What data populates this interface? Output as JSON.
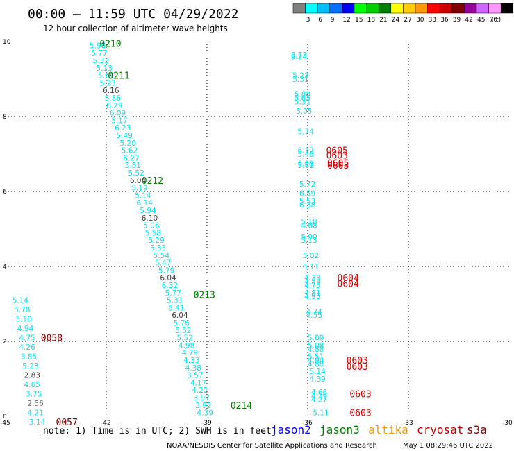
{
  "header": {
    "title": "00:00 — 11:59 UTC 04/29/2022",
    "subtitle": "12 hour collection of altimeter wave heights"
  },
  "legend": {
    "unit": "(ft)",
    "bins": [
      {
        "label": "",
        "color": "#808080"
      },
      {
        "label": "3",
        "color": "#00ffff"
      },
      {
        "label": "6",
        "color": "#00bfff"
      },
      {
        "label": "9",
        "color": "#0070ff"
      },
      {
        "label": "12",
        "color": "#0000ff"
      },
      {
        "label": "15",
        "color": "#00ff00"
      },
      {
        "label": "18",
        "color": "#00d000"
      },
      {
        "label": "21",
        "color": "#008000"
      },
      {
        "label": "24",
        "color": "#ffff00"
      },
      {
        "label": "27",
        "color": "#ffcc00"
      },
      {
        "label": "30",
        "color": "#ff9900"
      },
      {
        "label": "33",
        "color": "#ff0000"
      },
      {
        "label": "36",
        "color": "#cc0000"
      },
      {
        "label": "39",
        "color": "#800000"
      },
      {
        "label": "42",
        "color": "#990099"
      },
      {
        "label": "45",
        "color": "#cc66ff"
      },
      {
        "label": "70",
        "color": "#ff99ff"
      },
      {
        "label": "",
        "color": "#000000"
      }
    ]
  },
  "footer": {
    "note": "note: 1) Time is in UTC; 2) SWH is in feet",
    "satellites": [
      {
        "name": "jason2",
        "color": "#0000ff"
      },
      {
        "name": "jason3",
        "color": "#008000"
      },
      {
        "name": "altika",
        "color": "#ff9900"
      },
      {
        "name": "cryosat",
        "color": "#cc0000"
      },
      {
        "name": "s3a",
        "color": "#800000"
      }
    ],
    "credit": "NOAA/NESDIS Center for Satellite Applications and Research",
    "timestamp": "May  1 08:29:46 UTC 2022"
  },
  "chart_data": {
    "type": "scatter",
    "xlim": [
      -45,
      -30
    ],
    "ylim": [
      0,
      10
    ],
    "x_ticks": [
      "-45",
      "-42",
      "-39",
      "-36",
      "-33",
      "-30"
    ],
    "y_ticks": [
      "0",
      "2",
      "4",
      "6",
      "8",
      "10"
    ],
    "grid": "dotted",
    "colors": {
      "cyan": "#00e8f0",
      "grey": "#404040",
      "lgrey": "#707070",
      "green": "#008000",
      "red": "#e00000",
      "maroon": "#800000"
    },
    "values": [
      {
        "x": -42.5,
        "y": 9.9,
        "text": "5.96",
        "c": "cyan"
      },
      {
        "x": -42.45,
        "y": 9.7,
        "text": "5.77",
        "c": "cyan"
      },
      {
        "x": -42.4,
        "y": 9.5,
        "text": "5.33",
        "c": "cyan"
      },
      {
        "x": -42.3,
        "y": 9.3,
        "text": "5.13",
        "c": "cyan"
      },
      {
        "x": -42.25,
        "y": 9.1,
        "text": "5.61",
        "c": "cyan"
      },
      {
        "x": -42.2,
        "y": 8.9,
        "text": "5.23",
        "c": "cyan"
      },
      {
        "x": -42.1,
        "y": 8.7,
        "text": "6.16",
        "c": "grey"
      },
      {
        "x": -42.05,
        "y": 8.5,
        "text": "5.86",
        "c": "cyan"
      },
      {
        "x": -42.0,
        "y": 8.3,
        "text": "6.29",
        "c": "cyan"
      },
      {
        "x": -41.9,
        "y": 8.1,
        "text": "6.09",
        "c": "cyan"
      },
      {
        "x": -41.85,
        "y": 7.9,
        "text": "5.17",
        "c": "cyan"
      },
      {
        "x": -41.75,
        "y": 7.7,
        "text": "6.23",
        "c": "cyan"
      },
      {
        "x": -41.7,
        "y": 7.5,
        "text": "5.49",
        "c": "cyan"
      },
      {
        "x": -41.6,
        "y": 7.3,
        "text": "5.20",
        "c": "cyan"
      },
      {
        "x": -41.55,
        "y": 7.1,
        "text": "5.62",
        "c": "cyan"
      },
      {
        "x": -41.5,
        "y": 6.9,
        "text": "6.27",
        "c": "cyan"
      },
      {
        "x": -41.45,
        "y": 6.7,
        "text": "5.81",
        "c": "cyan"
      },
      {
        "x": -41.35,
        "y": 6.5,
        "text": "5.52",
        "c": "cyan"
      },
      {
        "x": -41.3,
        "y": 6.3,
        "text": "6.04",
        "c": "grey"
      },
      {
        "x": -41.25,
        "y": 6.1,
        "text": "5.19",
        "c": "cyan"
      },
      {
        "x": -41.15,
        "y": 5.9,
        "text": "5.14",
        "c": "cyan"
      },
      {
        "x": -41.1,
        "y": 5.7,
        "text": "6.14",
        "c": "cyan"
      },
      {
        "x": -41.0,
        "y": 5.5,
        "text": "5.94",
        "c": "cyan"
      },
      {
        "x": -40.95,
        "y": 5.3,
        "text": "6.10",
        "c": "grey"
      },
      {
        "x": -40.9,
        "y": 5.1,
        "text": "5.06",
        "c": "cyan"
      },
      {
        "x": -40.85,
        "y": 4.9,
        "text": "5.58",
        "c": "cyan"
      },
      {
        "x": -40.75,
        "y": 4.7,
        "text": "5.29",
        "c": "cyan"
      },
      {
        "x": -40.7,
        "y": 4.5,
        "text": "5.35",
        "c": "cyan"
      },
      {
        "x": -40.6,
        "y": 4.3,
        "text": "5.54",
        "c": "cyan"
      },
      {
        "x": -40.55,
        "y": 4.1,
        "text": "5.47",
        "c": "cyan"
      },
      {
        "x": -40.45,
        "y": 3.9,
        "text": "5.79",
        "c": "cyan"
      },
      {
        "x": -40.4,
        "y": 3.7,
        "text": "6.04",
        "c": "grey"
      },
      {
        "x": -40.35,
        "y": 3.5,
        "text": "6.32",
        "c": "cyan"
      },
      {
        "x": -40.25,
        "y": 3.3,
        "text": "5.77",
        "c": "cyan"
      },
      {
        "x": -40.2,
        "y": 3.1,
        "text": "5.31",
        "c": "cyan"
      },
      {
        "x": -40.15,
        "y": 2.9,
        "text": "5.41",
        "c": "cyan"
      },
      {
        "x": -40.05,
        "y": 2.7,
        "text": "6.04",
        "c": "grey"
      },
      {
        "x": -40.0,
        "y": 2.5,
        "text": "5.76",
        "c": "cyan"
      },
      {
        "x": -39.95,
        "y": 2.3,
        "text": "5.52",
        "c": "cyan"
      },
      {
        "x": -39.9,
        "y": 2.1,
        "text": "5.52",
        "c": "cyan"
      },
      {
        "x": -39.85,
        "y": 1.9,
        "text": "4.98",
        "c": "cyan"
      },
      {
        "x": -39.75,
        "y": 1.7,
        "text": "4.79",
        "c": "cyan"
      },
      {
        "x": -39.7,
        "y": 1.5,
        "text": "4.33",
        "c": "cyan"
      },
      {
        "x": -39.65,
        "y": 1.3,
        "text": "4.38",
        "c": "cyan"
      },
      {
        "x": -39.6,
        "y": 1.1,
        "text": "3.57",
        "c": "cyan"
      },
      {
        "x": -39.5,
        "y": 0.9,
        "text": "4.17",
        "c": "cyan"
      },
      {
        "x": -39.45,
        "y": 0.7,
        "text": "4.22",
        "c": "cyan"
      },
      {
        "x": -39.4,
        "y": 0.5,
        "text": "3.97",
        "c": "cyan"
      },
      {
        "x": -39.35,
        "y": 0.3,
        "text": "3.92",
        "c": "cyan"
      },
      {
        "x": -39.3,
        "y": 0.1,
        "text": "4.39",
        "c": "cyan"
      },
      {
        "x": -36.5,
        "y": 9.65,
        "text": "5.73",
        "c": "cyan"
      },
      {
        "x": -36.5,
        "y": 9.6,
        "text": "5.24",
        "c": "cyan"
      },
      {
        "x": -36.45,
        "y": 9.1,
        "text": "5.23",
        "c": "cyan"
      },
      {
        "x": -36.45,
        "y": 9.0,
        "text": "5.31",
        "c": "cyan"
      },
      {
        "x": -36.4,
        "y": 8.6,
        "text": "5.88",
        "c": "cyan"
      },
      {
        "x": -36.4,
        "y": 8.5,
        "text": "5.65",
        "c": "cyan"
      },
      {
        "x": -36.4,
        "y": 8.4,
        "text": "5.31",
        "c": "cyan"
      },
      {
        "x": -36.35,
        "y": 8.15,
        "text": "5.05",
        "c": "cyan"
      },
      {
        "x": -36.3,
        "y": 7.6,
        "text": "5.74",
        "c": "cyan"
      },
      {
        "x": -36.3,
        "y": 7.1,
        "text": "6.12",
        "c": "cyan"
      },
      {
        "x": -36.3,
        "y": 7.0,
        "text": "5.46",
        "c": "cyan"
      },
      {
        "x": -36.3,
        "y": 6.75,
        "text": "6.03",
        "c": "cyan"
      },
      {
        "x": -36.3,
        "y": 6.7,
        "text": "5.81",
        "c": "cyan"
      },
      {
        "x": -36.25,
        "y": 6.2,
        "text": "5.72",
        "c": "cyan"
      },
      {
        "x": -36.25,
        "y": 5.95,
        "text": "6.59",
        "c": "cyan"
      },
      {
        "x": -36.25,
        "y": 5.75,
        "text": "5.53",
        "c": "cyan"
      },
      {
        "x": -36.25,
        "y": 5.65,
        "text": "6.38",
        "c": "cyan"
      },
      {
        "x": -36.2,
        "y": 5.2,
        "text": "5.18",
        "c": "cyan"
      },
      {
        "x": -36.2,
        "y": 5.1,
        "text": "4.68",
        "c": "cyan"
      },
      {
        "x": -36.2,
        "y": 4.8,
        "text": "5.90",
        "c": "cyan"
      },
      {
        "x": -36.2,
        "y": 4.7,
        "text": "5.13",
        "c": "cyan"
      },
      {
        "x": -36.15,
        "y": 4.3,
        "text": "5.02",
        "c": "cyan"
      },
      {
        "x": -36.15,
        "y": 4.0,
        "text": "5.11",
        "c": "cyan"
      },
      {
        "x": -36.1,
        "y": 3.7,
        "text": "4.33",
        "c": "cyan"
      },
      {
        "x": -36.1,
        "y": 3.6,
        "text": "4.53",
        "c": "cyan"
      },
      {
        "x": -36.1,
        "y": 3.5,
        "text": "4.75",
        "c": "cyan"
      },
      {
        "x": -36.1,
        "y": 3.3,
        "text": "4.81",
        "c": "cyan"
      },
      {
        "x": -36.1,
        "y": 3.2,
        "text": "4.93",
        "c": "cyan"
      },
      {
        "x": -36.05,
        "y": 2.8,
        "text": "4.74",
        "c": "cyan"
      },
      {
        "x": -36.05,
        "y": 2.7,
        "text": "4.55",
        "c": "cyan"
      },
      {
        "x": -36.0,
        "y": 2.1,
        "text": "5.09",
        "c": "cyan"
      },
      {
        "x": -36.0,
        "y": 1.9,
        "text": "5.08",
        "c": "cyan"
      },
      {
        "x": -36.0,
        "y": 1.8,
        "text": "4.88",
        "c": "cyan"
      },
      {
        "x": -36.0,
        "y": 1.6,
        "text": "5.51",
        "c": "cyan"
      },
      {
        "x": -36.0,
        "y": 1.5,
        "text": "4.94",
        "c": "cyan"
      },
      {
        "x": -36.0,
        "y": 1.4,
        "text": "4.88",
        "c": "cyan"
      },
      {
        "x": -35.95,
        "y": 1.2,
        "text": "5.14",
        "c": "cyan"
      },
      {
        "x": -35.95,
        "y": 1.0,
        "text": "4.39",
        "c": "cyan"
      },
      {
        "x": -35.9,
        "y": 0.65,
        "text": "4.66",
        "c": "cyan"
      },
      {
        "x": -35.9,
        "y": 0.55,
        "text": "4.39",
        "c": "cyan"
      },
      {
        "x": -35.9,
        "y": 0.45,
        "text": "4.27",
        "c": "cyan"
      },
      {
        "x": -35.85,
        "y": 0.1,
        "text": "5.11",
        "c": "cyan"
      },
      {
        "x": -44.8,
        "y": 3.1,
        "text": "5.14",
        "c": "cyan"
      },
      {
        "x": -44.75,
        "y": 2.85,
        "text": "5.78",
        "c": "cyan"
      },
      {
        "x": -44.7,
        "y": 2.6,
        "text": "5.10",
        "c": "cyan"
      },
      {
        "x": -44.65,
        "y": 2.35,
        "text": "4.94",
        "c": "cyan"
      },
      {
        "x": -44.6,
        "y": 2.1,
        "text": "4.75",
        "c": "cyan"
      },
      {
        "x": -44.6,
        "y": 1.85,
        "text": "4.26",
        "c": "cyan"
      },
      {
        "x": -44.55,
        "y": 1.6,
        "text": "3.85",
        "c": "cyan"
      },
      {
        "x": -44.5,
        "y": 1.35,
        "text": "5.23",
        "c": "cyan"
      },
      {
        "x": -44.45,
        "y": 1.1,
        "text": "2.83",
        "c": "grey"
      },
      {
        "x": -44.45,
        "y": 0.85,
        "text": "4.65",
        "c": "cyan"
      },
      {
        "x": -44.4,
        "y": 0.6,
        "text": "3.75",
        "c": "cyan"
      },
      {
        "x": -44.35,
        "y": 0.35,
        "text": "2.56",
        "c": "lgrey"
      },
      {
        "x": -44.35,
        "y": 0.1,
        "text": "4.21",
        "c": "cyan"
      },
      {
        "x": -44.3,
        "y": -0.15,
        "text": "3.14",
        "c": "cyan"
      }
    ],
    "times": [
      {
        "x": -42.2,
        "y": 9.95,
        "text": "0210",
        "c": "green"
      },
      {
        "x": -41.95,
        "y": 9.1,
        "text": "0211",
        "c": "green"
      },
      {
        "x": -40.95,
        "y": 6.3,
        "text": "0212",
        "c": "green"
      },
      {
        "x": -39.4,
        "y": 3.25,
        "text": "0213",
        "c": "green"
      },
      {
        "x": -38.3,
        "y": 0.3,
        "text": "0214",
        "c": "green"
      },
      {
        "x": -43.95,
        "y": 2.1,
        "text": "0058",
        "c": "maroon"
      },
      {
        "x": -43.5,
        "y": -0.15,
        "text": "0057",
        "c": "maroon"
      },
      {
        "x": -35.45,
        "y": 7.1,
        "text": "0605",
        "c": "red"
      },
      {
        "x": -35.45,
        "y": 6.97,
        "text": "0603",
        "c": "red"
      },
      {
        "x": -35.42,
        "y": 6.77,
        "text": "0605",
        "c": "red"
      },
      {
        "x": -35.42,
        "y": 6.7,
        "text": "0603",
        "c": "red"
      },
      {
        "x": -35.12,
        "y": 3.7,
        "text": "0604",
        "c": "red"
      },
      {
        "x": -35.12,
        "y": 3.55,
        "text": "0604",
        "c": "red"
      },
      {
        "x": -34.85,
        "y": 1.5,
        "text": "0603",
        "c": "red"
      },
      {
        "x": -34.85,
        "y": 1.33,
        "text": "0603",
        "c": "red"
      },
      {
        "x": -34.75,
        "y": 0.6,
        "text": "0603",
        "c": "red"
      },
      {
        "x": -34.75,
        "y": 0.1,
        "text": "0603",
        "c": "red"
      }
    ]
  }
}
